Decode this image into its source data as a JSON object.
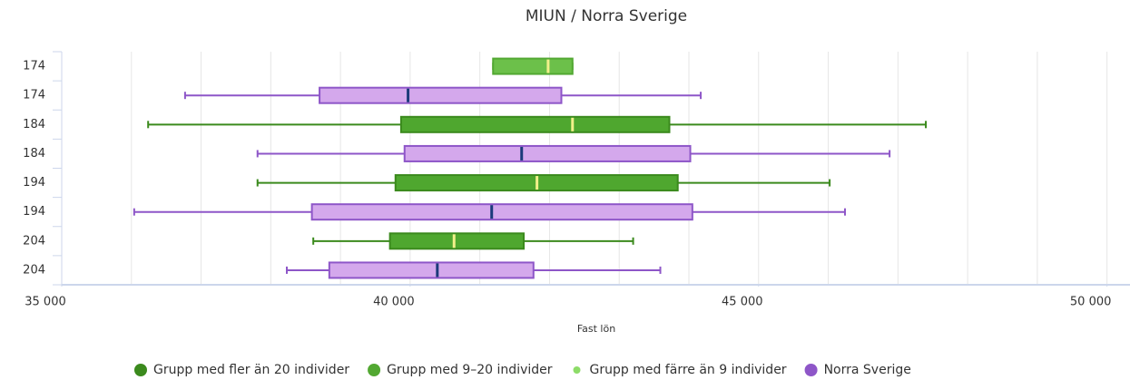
{
  "chart_data": {
    "type": "boxplot",
    "title": "MIUN / Norra Sverige",
    "xlabel": "Fast lön",
    "categories": [
      "174",
      "174",
      "184",
      "184",
      "194",
      "194",
      "204",
      "204"
    ],
    "series": [
      {
        "name": "Grupp med fler än 20 individer",
        "color": "#3b8a1d",
        "fill": "#4fa72f",
        "median_color": "#f2f08a"
      },
      {
        "name": "Grupp med 9–20 individer",
        "color": "#52a832",
        "fill": "#6cc04a",
        "median_color": "#f2f08a"
      },
      {
        "name": "Grupp med färre än 9 individer",
        "color": "#8ddc68",
        "fill": "#8ddc68",
        "median_color": "#f2f08a"
      },
      {
        "name": "Norra Sverige",
        "color": "#8e56c8",
        "fill": "#d4a8ec",
        "median_color": "#1b3a7a"
      }
    ],
    "boxes": [
      {
        "series": 1,
        "low": 41190,
        "q1": 41190,
        "median": 41980,
        "q3": 42330,
        "high": 42330
      },
      {
        "series": 3,
        "low": 36770,
        "q1": 38700,
        "median": 39970,
        "q3": 42170,
        "high": 44170
      },
      {
        "series": 0,
        "low": 36240,
        "q1": 39870,
        "median": 42330,
        "q3": 43720,
        "high": 47400
      },
      {
        "series": 3,
        "low": 37810,
        "q1": 39920,
        "median": 41600,
        "q3": 44020,
        "high": 46880
      },
      {
        "series": 0,
        "low": 37810,
        "q1": 39790,
        "median": 41820,
        "q3": 43840,
        "high": 46020
      },
      {
        "series": 3,
        "low": 36040,
        "q1": 38590,
        "median": 41170,
        "q3": 44050,
        "high": 46240
      },
      {
        "series": 0,
        "low": 38610,
        "q1": 39710,
        "median": 40630,
        "q3": 41630,
        "high": 43200
      },
      {
        "series": 3,
        "low": 38230,
        "q1": 38840,
        "median": 40390,
        "q3": 41770,
        "high": 43590
      }
    ],
    "xlim": [
      35000,
      50330
    ],
    "xticks": [
      {
        "value": 35000,
        "label": "35 000"
      },
      {
        "value": 40000,
        "label": "40 000"
      },
      {
        "value": 45000,
        "label": "45 000"
      },
      {
        "value": 50000,
        "label": "50 000"
      }
    ],
    "xgrid": [
      36000,
      37000,
      38000,
      39000,
      40000,
      41000,
      42000,
      43000,
      44000,
      45000,
      46000,
      47000,
      48000,
      49000,
      50000
    ],
    "legend": "bottom"
  }
}
